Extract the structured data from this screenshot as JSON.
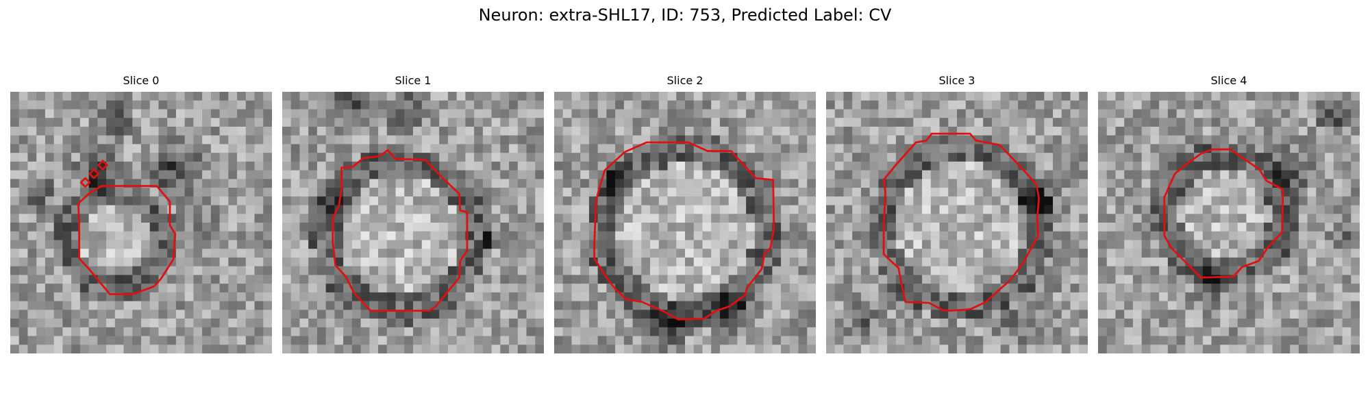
{
  "figure": {
    "title": "Neuron: extra-SHL17, ID: 753, Predicted Label: CV",
    "outline_color": "#e01010"
  },
  "slices": [
    {
      "title": "Slice 0"
    },
    {
      "title": "Slice 1"
    },
    {
      "title": "Slice 2"
    },
    {
      "title": "Slice 3"
    },
    {
      "title": "Slice 4"
    }
  ]
}
